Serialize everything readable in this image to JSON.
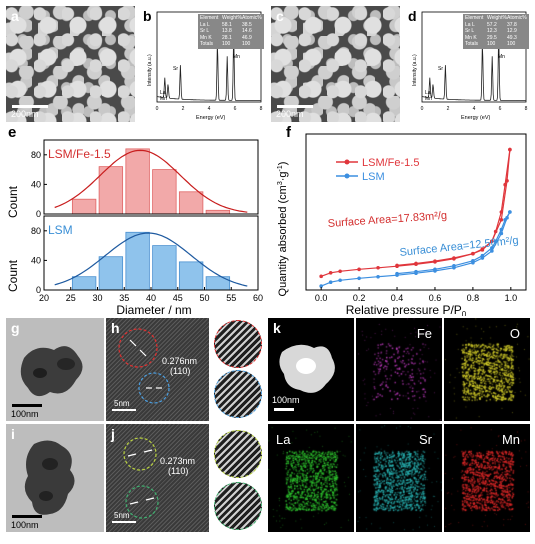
{
  "panels": {
    "a": {
      "label": "a",
      "scale": "200nm"
    },
    "b": {
      "label": "b",
      "table": {
        "headers": [
          "Element",
          "Weight%",
          "Atomic%"
        ],
        "rows": [
          [
            "La L",
            "58.1",
            "38.5"
          ],
          [
            "Sr L",
            "13.8",
            "14.6"
          ],
          [
            "Mn K",
            "28.1",
            "46.9"
          ],
          [
            "Totals",
            "100",
            "100"
          ]
        ]
      },
      "xlabel": "Energy (eV)",
      "ylabel": "Intensity (a.u.)",
      "xticks": [
        "0",
        "2",
        "4",
        "6",
        "8"
      ],
      "peaks": [
        "La",
        "Mn",
        "Sr",
        "La",
        "Mn"
      ]
    },
    "c": {
      "label": "c",
      "scale": "200nm"
    },
    "d": {
      "label": "d",
      "table": {
        "headers": [
          "Element",
          "Weight%",
          "Atomic%"
        ],
        "rows": [
          [
            "La L",
            "57.2",
            "37.8"
          ],
          [
            "Sr L",
            "12.3",
            "12.9"
          ],
          [
            "Mn K",
            "29.5",
            "49.3"
          ],
          [
            "Totals",
            "100",
            "100"
          ]
        ]
      },
      "xlabel": "Energy (eV)",
      "ylabel": "Intensity (a.u.)",
      "xticks": [
        "0",
        "2",
        "4",
        "6",
        "8"
      ],
      "peaks": [
        "La",
        "Mn",
        "Sr",
        "La",
        "Mn"
      ]
    },
    "e": {
      "label": "e",
      "xlabel": "Diameter / nm",
      "ylabel": "Count",
      "xticks": [
        "20",
        "25",
        "30",
        "35",
        "40",
        "45",
        "50",
        "55",
        "60"
      ],
      "yticks": [
        "0",
        "40",
        "80"
      ]
    },
    "f": {
      "label": "f",
      "xlabel": "Relative pressure P/P",
      "xlabel_sub": "0",
      "ylabel": "Quantity absorbed (cm",
      "ylabel_sup": "3",
      "ylabel_mid": "·g",
      "ylabel_sup2": "-1",
      "ylabel_end": ")",
      "xticks": [
        "0.0",
        "0.2",
        "0.4",
        "0.6",
        "0.8",
        "1.0"
      ],
      "annotation_red": "Surface Area=17.83m²/g",
      "annotation_blue": "Surface Area=12.56m²/g"
    },
    "g": {
      "label": "g",
      "scale": "100nm"
    },
    "h": {
      "label": "h",
      "scale": "5nm",
      "dspacing": "0.276nm",
      "plane": "(110)"
    },
    "i": {
      "label": "i",
      "scale": "100nm"
    },
    "j": {
      "label": "j",
      "scale": "5nm",
      "dspacing": "0.273nm",
      "plane": "(110)"
    },
    "k": {
      "label": "k",
      "scale": "100nm",
      "maps": [
        {
          "element": "Fe",
          "color": "#c43cc4"
        },
        {
          "element": "O",
          "color": "#d8d22a"
        },
        {
          "element": "La",
          "color": "#2fc82f"
        },
        {
          "element": "Sr",
          "color": "#28b4b4"
        },
        {
          "element": "Mn",
          "color": "#e02828"
        }
      ]
    }
  },
  "chart_data": [
    {
      "type": "bar",
      "panel": "e-top",
      "categories": [
        27.5,
        32.5,
        37.5,
        42.5,
        47.5,
        52.5
      ],
      "values": [
        20,
        64,
        88,
        60,
        30,
        5
      ],
      "series": [
        {
          "name": "LSM/Fe-1.5",
          "values": [
            20,
            64,
            88,
            60,
            30,
            5
          ]
        }
      ],
      "fit": {
        "mu": 38,
        "sigma": 7.5,
        "peak": 86
      },
      "colors": {
        "bar": "#f2a9a9",
        "edge": "#e06464",
        "fit": "#c81e1e",
        "legend": "#d32f2f"
      },
      "ylim": [
        0,
        100
      ],
      "xlim": [
        20,
        60
      ]
    },
    {
      "type": "bar",
      "panel": "e-bottom",
      "categories": [
        27.5,
        32.5,
        37.5,
        42.5,
        47.5,
        52.5
      ],
      "values": [
        18,
        45,
        78,
        60,
        38,
        18
      ],
      "series": [
        {
          "name": "LSM",
          "values": [
            18,
            45,
            78,
            60,
            38,
            18
          ]
        }
      ],
      "fit": {
        "mu": 39.5,
        "sigma": 8,
        "peak": 77
      },
      "colors": {
        "bar": "#8fc3ec",
        "edge": "#4a90d0",
        "fit": "#1e5aa0",
        "legend": "#3a8fd6"
      },
      "ylim": [
        0,
        100
      ],
      "xlim": [
        20,
        60
      ]
    },
    {
      "type": "line",
      "panel": "f",
      "series": [
        {
          "name": "LSM/Fe-1.5",
          "color": "#e0363c",
          "adsorption": [
            [
              0.0,
              3.5
            ],
            [
              0.05,
              4.4
            ],
            [
              0.1,
              4.8
            ],
            [
              0.2,
              5.3
            ],
            [
              0.3,
              5.7
            ],
            [
              0.4,
              6.1
            ],
            [
              0.5,
              6.6
            ],
            [
              0.6,
              7.2
            ],
            [
              0.7,
              8.0
            ],
            [
              0.8,
              9.3
            ],
            [
              0.85,
              10.5
            ],
            [
              0.9,
              12.5
            ],
            [
              0.95,
              18
            ],
            [
              0.98,
              28
            ],
            [
              0.995,
              36
            ]
          ],
          "desorption": [
            [
              0.995,
              36
            ],
            [
              0.97,
              27
            ],
            [
              0.95,
              20
            ],
            [
              0.92,
              15
            ],
            [
              0.9,
              12.5
            ],
            [
              0.85,
              10.3
            ],
            [
              0.8,
              9.3
            ],
            [
              0.7,
              8.2
            ],
            [
              0.6,
              7.4
            ],
            [
              0.5,
              6.8
            ],
            [
              0.4,
              6.3
            ]
          ]
        },
        {
          "name": "LSM",
          "color": "#3c8fe0",
          "adsorption": [
            [
              0.0,
              1.0
            ],
            [
              0.05,
              2.0
            ],
            [
              0.1,
              2.5
            ],
            [
              0.2,
              3.0
            ],
            [
              0.3,
              3.4
            ],
            [
              0.4,
              3.8
            ],
            [
              0.5,
              4.3
            ],
            [
              0.6,
              4.9
            ],
            [
              0.7,
              5.7
            ],
            [
              0.8,
              7.0
            ],
            [
              0.85,
              8.2
            ],
            [
              0.9,
              10.0
            ],
            [
              0.95,
              14.5
            ],
            [
              0.98,
              18.5
            ],
            [
              0.995,
              20
            ]
          ],
          "desorption": [
            [
              0.995,
              20
            ],
            [
              0.97,
              18
            ],
            [
              0.95,
              15.5
            ],
            [
              0.92,
              12.5
            ],
            [
              0.9,
              10.8
            ],
            [
              0.85,
              8.8
            ],
            [
              0.8,
              7.5
            ],
            [
              0.7,
              6.2
            ],
            [
              0.6,
              5.3
            ],
            [
              0.5,
              4.7
            ],
            [
              0.4,
              4.2
            ]
          ]
        }
      ],
      "xlim": [
        -0.08,
        1.08
      ],
      "ylim": [
        0,
        40
      ]
    }
  ]
}
